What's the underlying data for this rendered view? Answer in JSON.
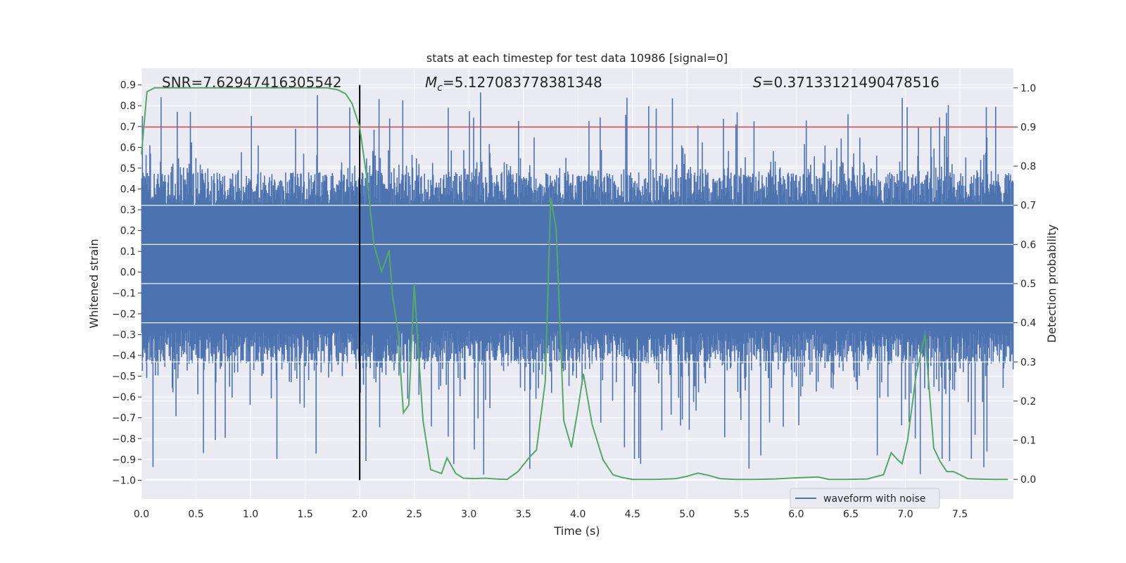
{
  "chart_data": {
    "type": "line",
    "title": "stats at each timestep for test data 10986 [signal=0]",
    "xlabel": "Time (s)",
    "ylabel_left": "Whitened strain",
    "ylabel_right": "Detection probability",
    "xlim": [
      0.0,
      7.99
    ],
    "ylim_left": [
      -1.09,
      0.98
    ],
    "ylim_right": [
      -0.05,
      1.05
    ],
    "x_ticks": [
      0.0,
      0.5,
      1.0,
      1.5,
      2.0,
      2.5,
      3.0,
      3.5,
      4.0,
      4.5,
      5.0,
      5.5,
      6.0,
      6.5,
      7.0,
      7.5
    ],
    "x_tick_labels": [
      "0.0",
      "0.5",
      "1.0",
      "1.5",
      "2.0",
      "2.5",
      "3.0",
      "3.5",
      "4.0",
      "4.5",
      "5.0",
      "5.5",
      "6.0",
      "6.5",
      "7.0",
      "7.5"
    ],
    "y_left_ticks": [
      0.9,
      0.8,
      0.7,
      0.6,
      0.5,
      0.4,
      0.3,
      0.2,
      0.1,
      0.0,
      -0.1,
      -0.2,
      -0.3,
      -0.4,
      -0.5,
      -0.6,
      -0.7,
      -0.8,
      -0.9,
      -1.0
    ],
    "y_left_tick_labels": [
      "0.9",
      "0.8",
      "0.7",
      "0.6",
      "0.5",
      "0.4",
      "0.3",
      "0.2",
      "0.1",
      "0.0",
      "−0.1",
      "−0.2",
      "−0.3",
      "−0.4",
      "−0.5",
      "−0.6",
      "−0.7",
      "−0.8",
      "−0.9",
      "−1.0"
    ],
    "y_right_ticks": [
      1.0,
      0.9,
      0.8,
      0.7,
      0.6,
      0.5,
      0.4,
      0.3,
      0.2,
      0.1,
      0.0
    ],
    "y_right_tick_labels": [
      "1.0",
      "0.9",
      "0.8",
      "0.7",
      "0.6",
      "0.5",
      "0.4",
      "0.3",
      "0.2",
      "0.1",
      "0.0"
    ],
    "annotations": {
      "snr": "SNR=7.62947416305542",
      "mc_symbol": "M",
      "mc_subscript": "c",
      "mc_value": "=5.127083778381348",
      "s_symbol": "S",
      "s_value": "=0.37133121490478516"
    },
    "threshold_line": {
      "axis": "right",
      "y": 0.9,
      "color": "#c44e52"
    },
    "vertical_marker": {
      "x": 2.0,
      "y_range": [
        -1.0,
        0.9
      ],
      "color": "#000000"
    },
    "legend": {
      "entries": [
        "waveform with noise"
      ],
      "location": "lower-right"
    },
    "grid": true,
    "series": [
      {
        "name": "waveform with noise",
        "axis": "left",
        "color": "#4c72b0",
        "description": "dense whitened strain noise, mostly within about [-0.45, 0.55] with spikes up to about 0.88 and down to about -1.0"
      },
      {
        "name": "detection probability",
        "axis": "right",
        "color": "#55a868",
        "x": [
          0.0,
          0.05,
          0.12,
          0.3,
          0.6,
          0.9,
          1.2,
          1.5,
          1.7,
          1.8,
          1.87,
          1.93,
          2.0,
          2.07,
          2.13,
          2.2,
          2.27,
          2.3,
          2.35,
          2.4,
          2.45,
          2.5,
          2.53,
          2.58,
          2.65,
          2.75,
          2.8,
          2.88,
          2.95,
          3.05,
          3.15,
          3.25,
          3.35,
          3.45,
          3.55,
          3.62,
          3.7,
          3.75,
          3.8,
          3.87,
          3.94,
          4.0,
          4.05,
          4.13,
          4.23,
          4.32,
          4.4,
          4.5,
          4.7,
          4.9,
          5.0,
          5.1,
          5.2,
          5.3,
          5.45,
          5.6,
          5.8,
          6.0,
          6.2,
          6.3,
          6.45,
          6.65,
          6.8,
          6.87,
          6.93,
          6.97,
          7.02,
          7.1,
          7.18,
          7.26,
          7.32,
          7.38,
          7.44,
          7.5,
          7.57,
          7.65,
          7.8,
          7.94
        ],
        "values": [
          0.83,
          0.99,
          1.0,
          1.0,
          1.0,
          1.0,
          1.0,
          1.0,
          1.0,
          0.995,
          0.985,
          0.96,
          0.9,
          0.76,
          0.6,
          0.53,
          0.585,
          0.47,
          0.38,
          0.17,
          0.19,
          0.5,
          0.36,
          0.15,
          0.025,
          0.015,
          0.055,
          0.015,
          0.003,
          0.002,
          0.003,
          0.001,
          0.0,
          0.02,
          0.055,
          0.075,
          0.25,
          0.72,
          0.64,
          0.15,
          0.082,
          0.18,
          0.27,
          0.14,
          0.05,
          0.012,
          0.005,
          0.0,
          0.0,
          0.002,
          0.008,
          0.016,
          0.01,
          0.002,
          0.0,
          0.0,
          0.001,
          0.004,
          0.006,
          0.0,
          0.0,
          0.001,
          0.012,
          0.068,
          0.05,
          0.04,
          0.1,
          0.27,
          0.37,
          0.08,
          0.045,
          0.02,
          0.02,
          0.012,
          0.002,
          0.001,
          0.0,
          0.0
        ]
      }
    ]
  }
}
